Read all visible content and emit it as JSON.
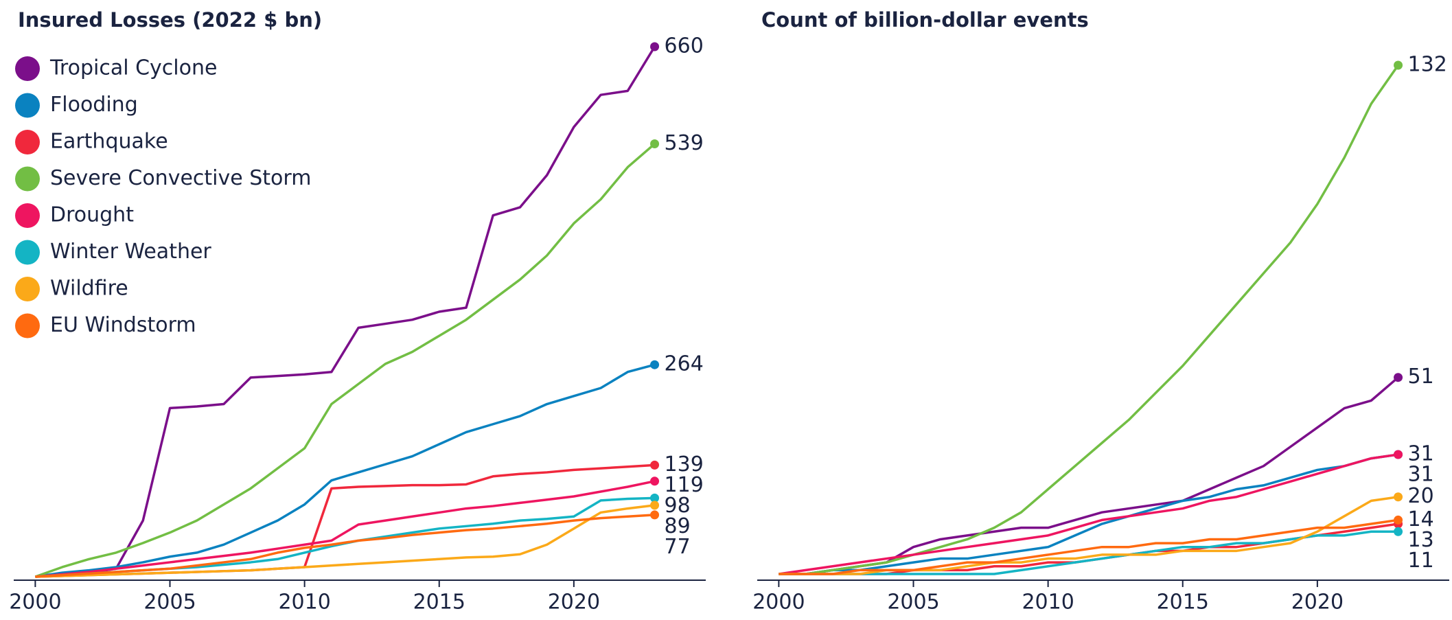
{
  "chart_data": [
    {
      "type": "line",
      "title": "Insured Losses (2022 $ bn)",
      "legend": "upper left",
      "x": [
        2000,
        2001,
        2002,
        2003,
        2004,
        2005,
        2006,
        2007,
        2008,
        2009,
        2010,
        2011,
        2012,
        2013,
        2014,
        2015,
        2016,
        2017,
        2018,
        2019,
        2020,
        2021,
        2022,
        2023
      ],
      "xlim": [
        1999.2,
        2025
      ],
      "xticks": [
        2000,
        2005,
        2010,
        2015,
        2020
      ],
      "ylim": [
        0,
        660
      ],
      "series": [
        {
          "name": "Tropical Cyclone",
          "color": "#7b0f8a",
          "values": [
            0,
            3,
            5,
            10,
            70,
            210,
            212,
            215,
            248,
            250,
            252,
            255,
            310,
            315,
            320,
            330,
            335,
            450,
            460,
            500,
            560,
            600,
            605,
            660
          ]
        },
        {
          "name": "Flooding",
          "color": "#0a82c0",
          "values": [
            0,
            5,
            8,
            12,
            18,
            25,
            30,
            40,
            55,
            70,
            90,
            120,
            130,
            140,
            150,
            165,
            180,
            190,
            200,
            215,
            225,
            235,
            255,
            264
          ]
        },
        {
          "name": "Earthquake",
          "color": "#f0283c",
          "values": [
            0,
            1,
            2,
            3,
            4,
            5,
            6,
            7,
            8,
            10,
            12,
            110,
            112,
            113,
            114,
            114,
            115,
            125,
            128,
            130,
            133,
            135,
            137,
            139
          ]
        },
        {
          "name": "Severe Convective Storm",
          "color": "#72be44",
          "values": [
            0,
            12,
            22,
            30,
            42,
            55,
            70,
            90,
            110,
            135,
            160,
            215,
            240,
            265,
            280,
            300,
            320,
            345,
            370,
            400,
            440,
            470,
            510,
            539
          ]
        },
        {
          "name": "Drought",
          "color": "#ee1560",
          "values": [
            0,
            3,
            6,
            10,
            14,
            18,
            22,
            26,
            30,
            35,
            40,
            45,
            65,
            70,
            75,
            80,
            85,
            88,
            92,
            96,
            100,
            106,
            112,
            119
          ]
        },
        {
          "name": "Winter Weather",
          "color": "#14b4c4",
          "values": [
            0,
            2,
            4,
            6,
            8,
            10,
            12,
            15,
            18,
            22,
            30,
            38,
            45,
            50,
            55,
            60,
            63,
            66,
            70,
            72,
            75,
            95,
            97,
            98
          ]
        },
        {
          "name": "Wildfire",
          "color": "#fba919",
          "values": [
            0,
            1,
            2,
            3,
            4,
            5,
            6,
            7,
            8,
            10,
            12,
            14,
            16,
            18,
            20,
            22,
            24,
            25,
            28,
            40,
            60,
            80,
            85,
            89
          ]
        },
        {
          "name": "EU Windstorm",
          "color": "#ff6a10",
          "values": [
            0,
            2,
            4,
            6,
            8,
            10,
            14,
            18,
            22,
            30,
            36,
            40,
            45,
            48,
            52,
            55,
            58,
            60,
            63,
            66,
            70,
            73,
            75,
            77
          ]
        }
      ]
    },
    {
      "type": "line",
      "title": "Count of billion-dollar events",
      "x": [
        2000,
        2001,
        2002,
        2003,
        2004,
        2005,
        2006,
        2007,
        2008,
        2009,
        2010,
        2011,
        2012,
        2013,
        2014,
        2015,
        2016,
        2017,
        2018,
        2019,
        2020,
        2021,
        2022,
        2023
      ],
      "xlim": [
        1999.2,
        2025
      ],
      "xticks": [
        2000,
        2005,
        2010,
        2015,
        2020
      ],
      "ylim": [
        0,
        132
      ],
      "series": [
        {
          "color": "#7b0f8a",
          "values": [
            0,
            0,
            1,
            2,
            3,
            7,
            9,
            10,
            11,
            12,
            12,
            14,
            16,
            17,
            18,
            19,
            22,
            25,
            28,
            33,
            38,
            43,
            45,
            51
          ]
        },
        {
          "color": "#0a82c0",
          "values": [
            0,
            0,
            1,
            1,
            2,
            3,
            4,
            4,
            5,
            6,
            7,
            10,
            13,
            15,
            17,
            19,
            20,
            22,
            23,
            25,
            27,
            28,
            30,
            31
          ]
        },
        {
          "color": "#f0283c",
          "values": [
            0,
            0,
            0,
            0,
            0,
            1,
            1,
            1,
            2,
            2,
            3,
            3,
            4,
            5,
            6,
            6,
            7,
            7,
            8,
            9,
            10,
            11,
            12,
            13
          ]
        },
        {
          "color": "#72be44",
          "values": [
            0,
            0,
            1,
            2,
            3,
            5,
            7,
            9,
            12,
            16,
            22,
            28,
            34,
            40,
            47,
            54,
            62,
            70,
            78,
            86,
            96,
            108,
            122,
            132
          ]
        },
        {
          "color": "#ee1560",
          "values": [
            0,
            1,
            2,
            3,
            4,
            5,
            6,
            7,
            8,
            9,
            10,
            12,
            14,
            15,
            16,
            17,
            19,
            20,
            22,
            24,
            26,
            28,
            30,
            31
          ]
        },
        {
          "color": "#14b4c4",
          "values": [
            0,
            0,
            0,
            0,
            0,
            0,
            0,
            0,
            0,
            1,
            2,
            3,
            4,
            5,
            6,
            7,
            7,
            8,
            8,
            9,
            10,
            10,
            11,
            11
          ]
        },
        {
          "color": "#fba919",
          "values": [
            0,
            0,
            0,
            0,
            1,
            1,
            1,
            2,
            3,
            3,
            4,
            4,
            5,
            5,
            5,
            6,
            6,
            6,
            7,
            8,
            11,
            15,
            19,
            20
          ]
        },
        {
          "color": "#ff6a10",
          "values": [
            0,
            0,
            0,
            1,
            1,
            1,
            2,
            3,
            3,
            4,
            5,
            6,
            7,
            7,
            8,
            8,
            9,
            9,
            10,
            11,
            12,
            12,
            13,
            14
          ]
        }
      ]
    }
  ]
}
